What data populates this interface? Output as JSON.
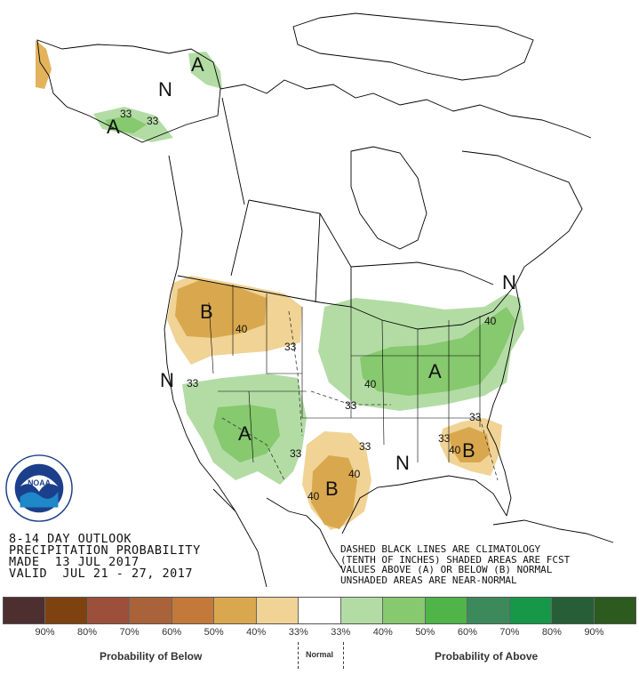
{
  "title": {
    "line1": "8-14 DAY OUTLOOK",
    "line2": "PRECIPITATION PROBABILITY",
    "line3": "MADE  13 JUL 2017",
    "line4": "VALID  JUL 21 - 27, 2017"
  },
  "notes": {
    "line1": "DASHED BLACK LINES ARE CLIMATOLOGY",
    "line2": "(TENTH OF INCHES) SHADED AREAS ARE FCST",
    "line3": "VALUES ABOVE (A) OR BELOW (B) NORMAL",
    "line4": "UNSHADED AREAS ARE NEAR-NORMAL"
  },
  "logo": {
    "text": "NOAA",
    "ring_text": "NATIONAL OCEANIC AND ATMOSPHERIC ADMINISTRATION - U.S. DEPARTMENT OF COMMERCE"
  },
  "map_labels": {
    "A_northwest_alaska": "A",
    "N_alaska": "N",
    "A_alaska_panhandle": "A",
    "iso_ak_33a": "33",
    "iso_ak_33b": "33",
    "B_northwest": "B",
    "iso_nw_40": "40",
    "iso_nw_33": "33",
    "N_west": "N",
    "iso_sw_33": "33",
    "A_southwest": "A",
    "iso_sw_33b": "33",
    "A_northeast": "A",
    "iso_ne_40a": "40",
    "iso_ne_40b": "40",
    "iso_ne_33": "33",
    "B_texas": "B",
    "iso_tx_40a": "40",
    "iso_tx_40b": "40",
    "iso_tx_33": "33",
    "N_south": "N",
    "B_southeast": "B",
    "iso_se_40": "40",
    "iso_se_33a": "33",
    "iso_se_33b": "33",
    "N_northeast": "N"
  },
  "legend": {
    "colors": [
      "#4d2f2f",
      "#7e4210",
      "#9c4f3b",
      "#a9623a",
      "#c2793a",
      "#d9a84e",
      "#f0d395",
      "#ffffff",
      "#b3dca5",
      "#86c96e",
      "#4fb548",
      "#3c8a5c",
      "#169848",
      "#275e38",
      "#2d5a1e"
    ],
    "labels": [
      "90%",
      "80%",
      "70%",
      "60%",
      "50%",
      "40%",
      "33%",
      "33%",
      "40%",
      "50%",
      "60%",
      "70%",
      "80%",
      "90%"
    ],
    "below_title": "Probability of Below",
    "normal_title": "Normal",
    "above_title": "Probability of Above"
  }
}
